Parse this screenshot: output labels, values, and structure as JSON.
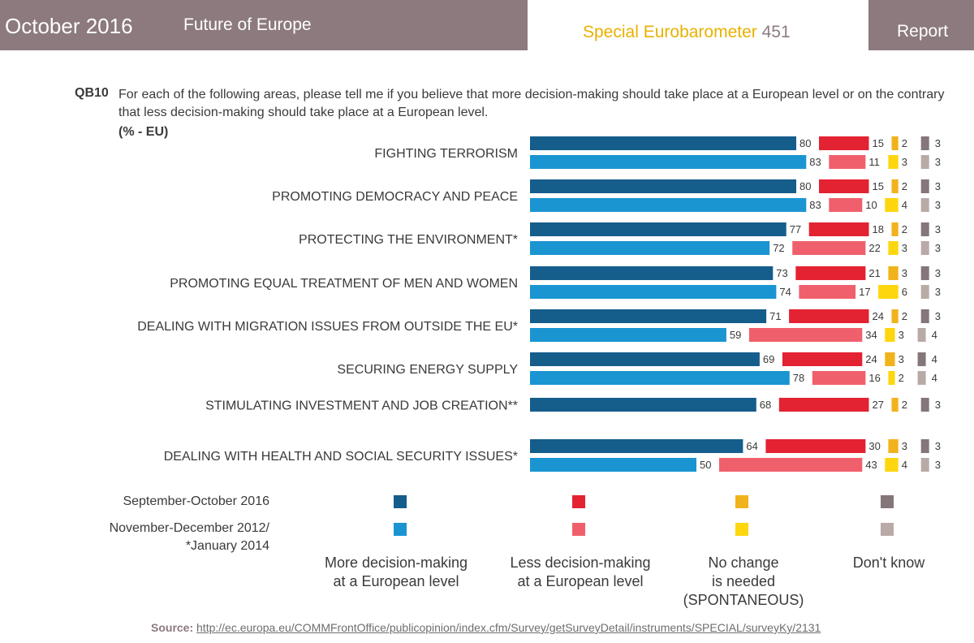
{
  "header": {
    "date": "October 2016",
    "topic": "Future of Europe",
    "survey_name": "Special Eurobarometer",
    "survey_number": "451",
    "report": "Report",
    "colors": {
      "band": "#8c7a7e",
      "survey_name": "#e8b100"
    }
  },
  "question": {
    "code": "QB10",
    "text": "For each of the following areas, please tell me if you believe that more decision-making should take place at a European level or on the contrary that less decision-making should take place at a European level.",
    "unit": "(% - EU)"
  },
  "chart_data": {
    "type": "bar",
    "orientation": "horizontal",
    "stacked_segments_with_gaps": true,
    "categories": [
      "FIGHTING TERRORISM",
      "PROMOTING DEMOCRACY AND PEACE",
      "PROTECTING THE ENVIRONMENT*",
      "PROMOTING EQUAL TREATMENT OF MEN AND WOMEN",
      "DEALING WITH MIGRATION ISSUES FROM OUTSIDE THE EU*",
      "SECURING ENERGY SUPPLY",
      "STIMULATING INVESTMENT AND JOB CREATION**",
      "DEALING WITH HEALTH AND SOCIAL SECURITY ISSUES*"
    ],
    "periods": [
      {
        "name": "September-October 2016",
        "series": {
          "more": [
            80,
            80,
            77,
            73,
            71,
            69,
            68,
            64
          ],
          "less": [
            15,
            15,
            18,
            21,
            24,
            24,
            27,
            30
          ],
          "no_change": [
            2,
            2,
            2,
            3,
            2,
            3,
            2,
            3
          ],
          "dont_know": [
            3,
            3,
            3,
            3,
            3,
            4,
            3,
            3
          ]
        }
      },
      {
        "name": "November-December 2012/ *January 2014",
        "series": {
          "more": [
            83,
            83,
            72,
            74,
            59,
            78,
            null,
            50
          ],
          "less": [
            11,
            10,
            22,
            17,
            34,
            16,
            null,
            43
          ],
          "no_change": [
            3,
            4,
            3,
            6,
            3,
            2,
            null,
            4
          ],
          "dont_know": [
            3,
            3,
            3,
            3,
            4,
            4,
            null,
            3
          ]
        }
      }
    ],
    "series_names": {
      "more": "More decision-making at a European level",
      "less": "Less decision-making at a European level",
      "no_change": "No change is needed (SPONTANEOUS)",
      "dont_know": "Don't know"
    },
    "colors": {
      "more": [
        "#155d8b",
        "#1a95d2"
      ],
      "less": [
        "#e32232",
        "#f0606c"
      ],
      "no_change": [
        "#f1b31c",
        "#fdd60f"
      ],
      "dont_know": [
        "#857679",
        "#b9aaa7"
      ]
    },
    "xlim": [
      0,
      100
    ]
  },
  "legend": {
    "period_1": "September-October 2016",
    "period_2_line1": "November-December 2012/",
    "period_2_line2": "*January 2014",
    "more_line1": "More decision-making",
    "more_line2": "at a European level",
    "less_line1": "Less decision-making",
    "less_line2": "at a European level",
    "nochange_line1": "No change",
    "nochange_line2": "is needed",
    "nochange_line3": "(SPONTANEOUS)",
    "dontknow_line1": "Don't know"
  },
  "source": {
    "label": "Source:",
    "url": "http://ec.europa.eu/COMMFrontOffice/publicopinion/index.cfm/Survey/getSurveyDetail/instruments/SPECIAL/surveyKy/2131"
  }
}
